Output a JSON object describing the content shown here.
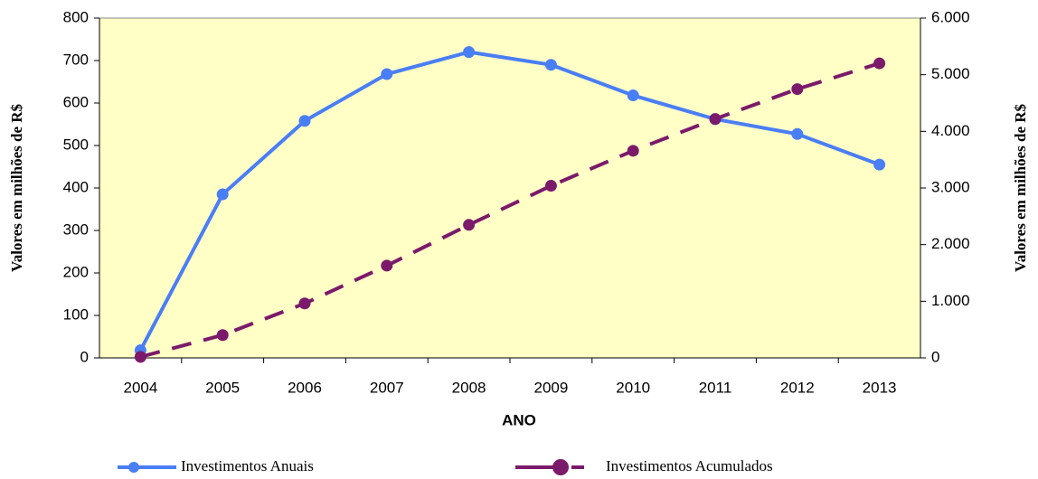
{
  "chart_data": {
    "type": "line",
    "categories": [
      "2004",
      "2005",
      "2006",
      "2007",
      "2008",
      "2009",
      "2010",
      "2011",
      "2012",
      "2013"
    ],
    "series": [
      {
        "name": "Investimentos Anuais",
        "color": "#4a7ef5",
        "dashed": false,
        "values": [
          18,
          385,
          558,
          668,
          720,
          690,
          618,
          562,
          527,
          455
        ]
      },
      {
        "name": "Investimentos Acumulados",
        "color": "#7b1a6b",
        "dashed": true,
        "axis": "y2",
        "values": [
          18,
          403,
          961,
          1629,
          2349,
          3039,
          3657,
          4219,
          4746,
          5201
        ]
      }
    ],
    "xlabel": "ANO",
    "ylabel": "Valores em milhões de  R$",
    "y2label": "Valores em milhões de  R$",
    "ylim": [
      0,
      800
    ],
    "yticks": [
      0,
      100,
      200,
      300,
      400,
      500,
      600,
      700,
      800
    ],
    "y2lim": [
      0,
      6000
    ],
    "y2ticks": [
      0,
      {
        "value": 1000,
        "label": "1.000"
      },
      {
        "value": 2000,
        "label": "2.000"
      },
      {
        "value": 3000,
        "label": "3.000"
      },
      {
        "value": 4000,
        "label": "4.000"
      },
      {
        "value": 5000,
        "label": "5.000"
      },
      {
        "value": 6000,
        "label": "6.000"
      }
    ],
    "background": "#ffffc6"
  }
}
